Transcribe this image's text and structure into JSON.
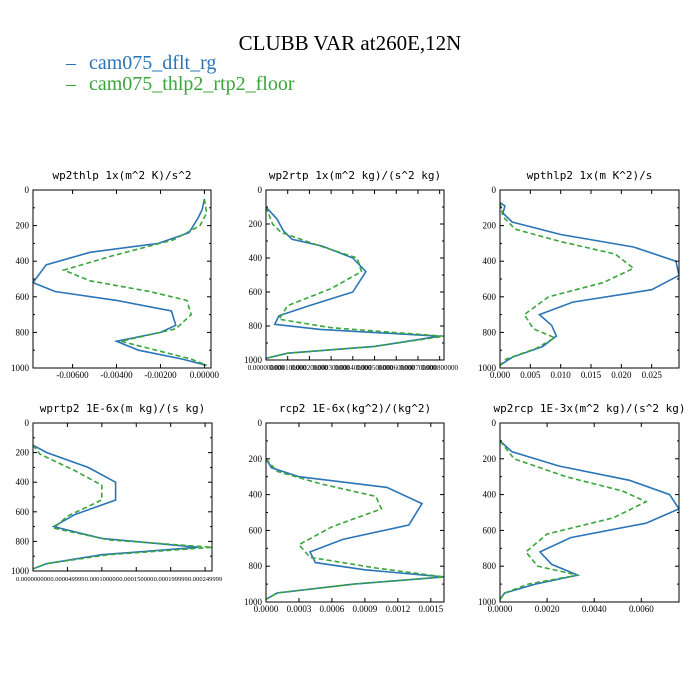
{
  "title": "CLUBB VAR at260E,12N",
  "legend": [
    {
      "name": "cam075_dflt_rg",
      "color": "#2a74b8",
      "dash": "none"
    },
    {
      "name": "cam075_thlp2_rtp2_floor",
      "color": "#39a53a",
      "dash": "5,3"
    }
  ],
  "chart_data": [
    {
      "type": "line",
      "title": "wp2thlp  1x(m^2 K)/s^2",
      "xlim": [
        -0.0078,
        0.0003
      ],
      "ylim": [
        0,
        1000
      ],
      "xticks": [
        -0.006,
        -0.004,
        -0.002,
        0.0
      ],
      "xticklabels": [
        "-0.00600",
        "-0.00400",
        "-0.00200",
        "0.00000"
      ],
      "yticks": [
        0,
        200,
        400,
        600,
        800,
        1000
      ],
      "series": [
        {
          "name": "cam075_dflt_rg",
          "x": [
            0.0,
            -0.0001,
            -0.0003,
            -0.0007,
            -0.0021,
            -0.0052,
            -0.0072,
            -0.0078,
            -0.0068,
            -0.004,
            -0.0015,
            -0.0013,
            -0.002,
            -0.004,
            -0.003,
            -0.001,
            0.0001
          ],
          "y": [
            50,
            110,
            160,
            240,
            300,
            350,
            420,
            520,
            570,
            620,
            680,
            760,
            800,
            850,
            900,
            950,
            985
          ]
        },
        {
          "name": "cam075_thlp2_rtp2_floor",
          "x": [
            0.0,
            0.0001,
            -0.0002,
            -0.0014,
            -0.0042,
            -0.0064,
            -0.0052,
            -0.0025,
            -0.0008,
            -0.0006,
            -0.0013,
            -0.0038,
            -0.0022,
            -0.0006,
            0.0001
          ],
          "y": [
            50,
            130,
            200,
            280,
            370,
            450,
            510,
            570,
            620,
            700,
            780,
            850,
            900,
            950,
            985
          ]
        }
      ]
    },
    {
      "type": "line",
      "title": "wp2rtp  1x(m^2 kg)/(s^2 kg)",
      "xlim": [
        0.0,
        0.00082
      ],
      "ylim": [
        0,
        1000
      ],
      "xticks": [
        0.0,
        0.0001,
        0.0002,
        0.0003,
        0.0004,
        0.0005,
        0.0006,
        0.0007,
        0.0008
      ],
      "xticklabels": [
        "0.000000000",
        "0.000100000",
        "0.000200000",
        "0.000300000",
        "0.000400000",
        "0.000500000",
        "0.000600000",
        "0.000700000",
        "0.000800000"
      ],
      "yticks": [
        0,
        200,
        400,
        600,
        800,
        1000
      ],
      "series": [
        {
          "name": "cam075_dflt_rg",
          "x": [
            0.0,
            5e-05,
            8e-05,
            0.00012,
            0.00026,
            0.0004,
            0.00046,
            0.0004,
            0.0002,
            6e-05,
            4e-05,
            0.00025,
            0.0008,
            0.0005,
            0.0001,
            0.0
          ],
          "y": [
            100,
            170,
            240,
            290,
            330,
            400,
            480,
            600,
            680,
            740,
            790,
            820,
            860,
            920,
            960,
            990
          ]
        },
        {
          "name": "cam075_thlp2_rtp2_floor",
          "x": [
            0.0,
            3e-05,
            7e-05,
            0.00025,
            0.00042,
            0.00044,
            0.0003,
            0.0001,
            6e-05,
            0.0003,
            0.00082,
            0.0005,
            0.0001,
            0.0
          ],
          "y": [
            100,
            200,
            250,
            330,
            400,
            480,
            580,
            680,
            760,
            810,
            860,
            920,
            960,
            990
          ]
        }
      ]
    },
    {
      "type": "line",
      "title": "wpthlp2  1x(m K^2)/s",
      "xlim": [
        0.0,
        0.0295
      ],
      "ylim": [
        0,
        1000
      ],
      "xticks": [
        0.0,
        0.005,
        0.01,
        0.015,
        0.02,
        0.025
      ],
      "xticklabels": [
        "0.000",
        "0.005",
        "0.010",
        "0.015",
        "0.020",
        "0.025"
      ],
      "yticks": [
        0,
        200,
        400,
        600,
        800,
        1000
      ],
      "series": [
        {
          "name": "cam075_dflt_rg",
          "x": [
            0.0,
            0.0008,
            0.0005,
            0.002,
            0.01,
            0.022,
            0.029,
            0.0295,
            0.025,
            0.012,
            0.0065,
            0.0085,
            0.0093,
            0.007,
            0.002,
            0.0
          ],
          "y": [
            70,
            90,
            130,
            180,
            250,
            320,
            400,
            480,
            560,
            630,
            700,
            760,
            820,
            880,
            940,
            985
          ]
        },
        {
          "name": "cam075_thlp2_rtp2_floor",
          "x": [
            0.0,
            0.0005,
            0.0025,
            0.01,
            0.019,
            0.022,
            0.017,
            0.008,
            0.004,
            0.0055,
            0.009,
            0.006,
            0.001,
            0.0
          ],
          "y": [
            70,
            150,
            220,
            290,
            360,
            440,
            520,
            600,
            700,
            780,
            830,
            890,
            950,
            985
          ]
        }
      ]
    },
    {
      "type": "line",
      "title": "wprtp2  1E-6x(m kg)/(s kg)",
      "xlim": [
        0.0,
        0.00026
      ],
      "ylim": [
        0,
        1000
      ],
      "xticks": [
        0.0,
        5e-05,
        0.0001,
        0.00015,
        0.0002,
        0.00025
      ],
      "xticklabels": [
        "0.000000000",
        "0.000049999",
        "0.000100000",
        "0.000150000",
        "0.000199999",
        "0.000249999"
      ],
      "yticks": [
        0,
        200,
        400,
        600,
        800,
        1000
      ],
      "series": [
        {
          "name": "cam075_dflt_rg",
          "x": [
            0.0,
            2e-05,
            8e-05,
            0.00012,
            0.00012,
            6e-05,
            3e-05,
            0.0001,
            0.00024,
            0.0001,
            2e-05,
            0.0
          ],
          "y": [
            150,
            200,
            300,
            400,
            520,
            620,
            700,
            780,
            840,
            890,
            950,
            985
          ]
        },
        {
          "name": "cam075_thlp2_rtp2_floor",
          "x": [
            0.0,
            1e-05,
            6e-05,
            0.0001,
            0.0001,
            5e-05,
            3e-05,
            0.00011,
            0.00026,
            0.00011,
            2e-05,
            0.0
          ],
          "y": [
            150,
            210,
            320,
            420,
            520,
            630,
            710,
            790,
            840,
            890,
            950,
            985
          ]
        }
      ]
    },
    {
      "type": "line",
      "title": "rcp2  1E-6x(kg^2)/(kg^2)",
      "xlim": [
        0.0,
        0.00162
      ],
      "ylim": [
        0,
        1000
      ],
      "xticks": [
        0.0,
        0.0003,
        0.0006,
        0.0009,
        0.0012,
        0.0015
      ],
      "xticklabels": [
        "0.0000",
        "0.0003",
        "0.0006",
        "0.0009",
        "0.0012",
        "0.0015"
      ],
      "yticks": [
        0,
        200,
        400,
        600,
        800,
        1000
      ],
      "series": [
        {
          "name": "cam075_dflt_rg",
          "x": [
            0.0,
            5e-05,
            0.0003,
            0.0011,
            0.00142,
            0.0013,
            0.0007,
            0.0004,
            0.00045,
            0.0009,
            0.00162,
            0.0008,
            0.0001,
            0.0
          ],
          "y": [
            200,
            250,
            300,
            360,
            450,
            570,
            650,
            720,
            780,
            820,
            860,
            900,
            950,
            985
          ]
        },
        {
          "name": "cam075_thlp2_rtp2_floor",
          "x": [
            0.0,
            0.0001,
            0.0005,
            0.001,
            0.00105,
            0.0006,
            0.0003,
            0.0004,
            0.001,
            0.00162,
            0.0008,
            0.0001,
            0.0
          ],
          "y": [
            200,
            270,
            340,
            410,
            480,
            580,
            680,
            750,
            810,
            860,
            900,
            950,
            985
          ]
        }
      ]
    },
    {
      "type": "line",
      "title": "wp2rcp  1E-3x(m^2 kg)/(s^2 kg)",
      "xlim": [
        0.0,
        0.0076
      ],
      "ylim": [
        0,
        1000
      ],
      "xticks": [
        0.0,
        0.002,
        0.004,
        0.006
      ],
      "xticklabels": [
        "0.0000",
        "0.0020",
        "0.0040",
        "0.0060"
      ],
      "yticks": [
        0,
        200,
        400,
        600,
        800,
        1000
      ],
      "series": [
        {
          "name": "cam075_dflt_rg",
          "x": [
            0.0,
            0.0005,
            0.0025,
            0.0055,
            0.0072,
            0.0076,
            0.0062,
            0.003,
            0.0017,
            0.0022,
            0.0033,
            0.0015,
            0.0002,
            0.0
          ],
          "y": [
            100,
            160,
            240,
            320,
            400,
            480,
            560,
            640,
            720,
            790,
            850,
            900,
            950,
            985
          ]
        },
        {
          "name": "cam075_thlp2_rtp2_floor",
          "x": [
            0.0,
            0.0006,
            0.0028,
            0.0052,
            0.0062,
            0.0048,
            0.002,
            0.0011,
            0.0016,
            0.0033,
            0.0012,
            0.0002,
            0.0
          ],
          "y": [
            100,
            200,
            300,
            380,
            440,
            530,
            620,
            720,
            800,
            850,
            900,
            950,
            985
          ]
        }
      ]
    }
  ]
}
